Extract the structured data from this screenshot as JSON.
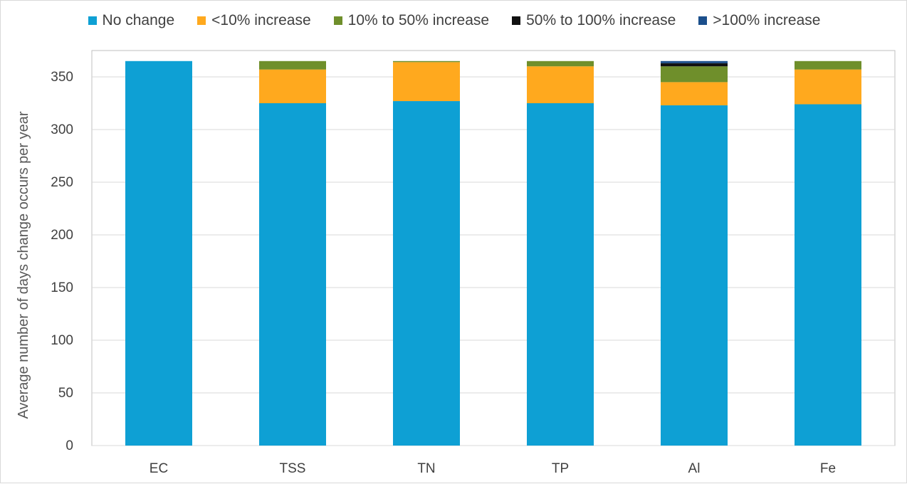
{
  "chart_data": {
    "type": "bar",
    "stacked": true,
    "title": "",
    "xlabel": "",
    "ylabel": "Average number of days change occurs  per year",
    "ylim": [
      0,
      375
    ],
    "yticks": [
      0,
      50,
      100,
      150,
      200,
      250,
      300,
      350
    ],
    "grid": true,
    "legend_position": "top",
    "categories": [
      "EC",
      "TSS",
      "TN",
      "TP",
      "Al",
      "Fe"
    ],
    "series": [
      {
        "name": "No change",
        "color": "#0ea0d4",
        "values": [
          365,
          325,
          327,
          325,
          323,
          324
        ]
      },
      {
        "name": "<10% increase",
        "color": "#ffa91e",
        "values": [
          0,
          32,
          37,
          35,
          22,
          33
        ]
      },
      {
        "name": "10% to 50% increase",
        "color": "#6f8f2b",
        "values": [
          0,
          8,
          1,
          5,
          15,
          8
        ]
      },
      {
        "name": "50% to 100% increase",
        "color": "#111111",
        "values": [
          0,
          0,
          0,
          0,
          3,
          0
        ]
      },
      {
        "name": ">100% increase",
        "color": "#1b4f8c",
        "values": [
          0,
          0,
          0,
          0,
          2,
          0
        ]
      }
    ]
  }
}
